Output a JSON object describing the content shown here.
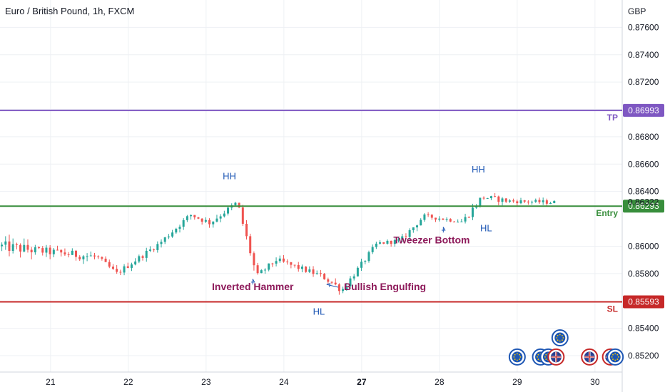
{
  "chart_data": {
    "type": "candlestick",
    "title": "Euro / British Pound, 1h, FXCM",
    "currency": "GBP",
    "ylim": [
      0.8508,
      0.878
    ],
    "y_ticks": [
      "0.87600",
      "0.87400",
      "0.87200",
      "0.87000",
      "0.86800",
      "0.86600",
      "0.86400",
      "0.86000",
      "0.85800",
      "0.85400",
      "0.85200"
    ],
    "x_ticks": [
      {
        "label": "21",
        "bold": false,
        "pos": 0.5
      },
      {
        "label": "22",
        "bold": false,
        "pos": 1.5
      },
      {
        "label": "23",
        "bold": false,
        "pos": 2.5
      },
      {
        "label": "24",
        "bold": false,
        "pos": 3.5
      },
      {
        "label": "27",
        "bold": true,
        "pos": 4.5
      },
      {
        "label": "28",
        "bold": false,
        "pos": 5.5
      },
      {
        "label": "29",
        "bold": false,
        "pos": 6.5
      },
      {
        "label": "30",
        "bold": false,
        "pos": 7.5
      }
    ],
    "xlim": [
      -0.15,
      7.85
    ],
    "colors": {
      "up": "#26a69a",
      "down": "#ef5350",
      "tp": "#7e57c2",
      "entry": "#388e3c",
      "sl": "#c62828",
      "annotation": "#8e1b5b",
      "swing": "#1e57b4",
      "grid": "#eef0f4"
    },
    "levels": [
      {
        "name": "TP",
        "value": 0.86993,
        "label": "0.86993",
        "color": "#7e57c2"
      },
      {
        "name": "Entry",
        "value": 0.86293,
        "label": "0.86293",
        "color": "#388e3c"
      },
      {
        "name": "SL",
        "value": 0.85593,
        "label": "0.85593",
        "color": "#c62828"
      }
    ],
    "last_price": {
      "value": 0.86322,
      "label": "0.86322"
    },
    "annotations": [
      {
        "text": "HH",
        "x": 2.8,
        "y": 0.8649,
        "color": "#1e57b4"
      },
      {
        "text": "HH",
        "x": 6.0,
        "y": 0.8654,
        "color": "#1e57b4"
      },
      {
        "text": "HL",
        "x": 3.95,
        "y": 0.855,
        "color": "#1e57b4"
      },
      {
        "text": "HL",
        "x": 6.1,
        "y": 0.8611,
        "color": "#1e57b4"
      },
      {
        "text": "Inverted Hammer",
        "x": 3.1,
        "y": 0.8568,
        "color": "#8e1b5b"
      },
      {
        "text": "Bullish Engulfing",
        "x": 4.8,
        "y": 0.8568,
        "color": "#8e1b5b"
      },
      {
        "text": "Tweezer Bottom",
        "x": 5.4,
        "y": 0.8602,
        "color": "#8e1b5b"
      }
    ],
    "pointers": [
      {
        "from_x": 3.1,
        "from_y": 0.8572,
        "to_x": 3.1,
        "to_y": 0.8576
      },
      {
        "from_x": 4.2,
        "from_y": 0.857,
        "to_x": 4.05,
        "to_y": 0.8572
      },
      {
        "from_x": 5.55,
        "from_y": 0.861,
        "to_x": 5.55,
        "to_y": 0.8614
      }
    ],
    "event_flags": [
      {
        "x": 6.5,
        "y": 0.8519,
        "kind": "eu"
      },
      {
        "x": 6.8,
        "y": 0.8519,
        "kind": "eu"
      },
      {
        "x": 6.9,
        "y": 0.8519,
        "kind": "eu"
      },
      {
        "x": 7.0,
        "y": 0.8519,
        "kind": "uk"
      },
      {
        "x": 7.05,
        "y": 0.8533,
        "kind": "eu"
      },
      {
        "x": 7.43,
        "y": 0.8519,
        "kind": "uk"
      },
      {
        "x": 7.7,
        "y": 0.8519,
        "kind": "uk"
      },
      {
        "x": 7.76,
        "y": 0.8519,
        "kind": "eu"
      }
    ],
    "segments": [
      {
        "x0": -0.15,
        "x1": 0.3,
        "p0": 0.86,
        "p1": 0.8597,
        "amp": 0.0008
      },
      {
        "x0": 0.3,
        "x1": 1.1,
        "p0": 0.8597,
        "p1": 0.8592,
        "amp": 0.0006
      },
      {
        "x0": 1.1,
        "x1": 1.35,
        "p0": 0.8592,
        "p1": 0.858,
        "amp": 0.0004
      },
      {
        "x0": 1.35,
        "x1": 1.9,
        "p0": 0.858,
        "p1": 0.8602,
        "amp": 0.0004
      },
      {
        "x0": 1.9,
        "x1": 2.3,
        "p0": 0.8602,
        "p1": 0.8623,
        "amp": 0.0004
      },
      {
        "x0": 2.3,
        "x1": 2.55,
        "p0": 0.8623,
        "p1": 0.8617,
        "amp": 0.0004
      },
      {
        "x0": 2.55,
        "x1": 2.9,
        "p0": 0.8617,
        "p1": 0.8632,
        "amp": 0.0004
      },
      {
        "x0": 2.9,
        "x1": 3.15,
        "p0": 0.8632,
        "p1": 0.8578,
        "amp": 0.0006
      },
      {
        "x0": 3.15,
        "x1": 3.4,
        "p0": 0.8578,
        "p1": 0.859,
        "amp": 0.0004
      },
      {
        "x0": 3.4,
        "x1": 4.0,
        "p0": 0.859,
        "p1": 0.8578,
        "amp": 0.0004
      },
      {
        "x0": 4.0,
        "x1": 4.25,
        "p0": 0.8578,
        "p1": 0.8568,
        "amp": 0.0005
      },
      {
        "x0": 4.25,
        "x1": 4.7,
        "p0": 0.8568,
        "p1": 0.8602,
        "amp": 0.0004
      },
      {
        "x0": 4.7,
        "x1": 5.0,
        "p0": 0.8602,
        "p1": 0.8604,
        "amp": 0.0003
      },
      {
        "x0": 5.0,
        "x1": 5.3,
        "p0": 0.8604,
        "p1": 0.8622,
        "amp": 0.0004
      },
      {
        "x0": 5.3,
        "x1": 5.8,
        "p0": 0.8622,
        "p1": 0.8618,
        "amp": 0.0003
      },
      {
        "x0": 5.8,
        "x1": 6.05,
        "p0": 0.8618,
        "p1": 0.8636,
        "amp": 0.0005
      },
      {
        "x0": 6.05,
        "x1": 6.4,
        "p0": 0.8636,
        "p1": 0.8633,
        "amp": 0.0004
      },
      {
        "x0": 6.4,
        "x1": 7.0,
        "p0": 0.8633,
        "p1": 0.8632,
        "amp": 0.0003
      }
    ]
  }
}
